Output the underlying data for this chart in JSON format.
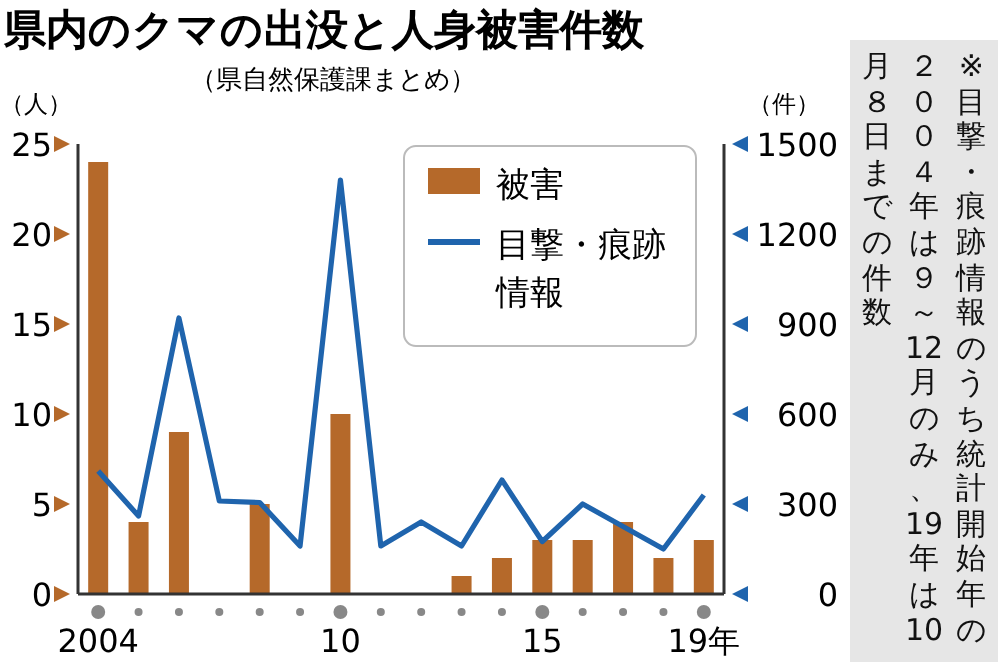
{
  "chart_data": {
    "type": "bar",
    "title": "県内のクマの出没と人身被害件数",
    "subtitle": "（県自然保護課まとめ）",
    "ylabel": "（人）",
    "y2label": "（件）",
    "categories": [
      "2004",
      null,
      null,
      null,
      null,
      null,
      "10",
      null,
      null,
      null,
      null,
      "15",
      null,
      null,
      null,
      "19年"
    ],
    "series": [
      {
        "name": "被害",
        "type": "bar",
        "color": "#b5692a",
        "values": [
          24,
          4,
          9,
          0,
          5,
          0,
          10,
          0,
          0,
          1,
          2,
          3,
          3,
          4,
          2,
          3
        ]
      },
      {
        "name": "目撃・痕跡情報",
        "type": "line",
        "axis": "y2",
        "color": "#1f64ad",
        "values": [
          410,
          260,
          920,
          310,
          305,
          160,
          1380,
          160,
          240,
          160,
          380,
          175,
          300,
          225,
          150,
          330
        ]
      }
    ],
    "ylim": [
      0,
      25
    ],
    "yticks": [
      0,
      5,
      10,
      15,
      20,
      25
    ],
    "y2lim": [
      0,
      1500
    ],
    "y2ticks": [
      0,
      300,
      600,
      900,
      1200,
      1500
    ],
    "legend": "top right",
    "grid": false,
    "marker": "none",
    "line_style": "solid",
    "annotations": [
      "※目撃・痕跡情報のうち統計開始年の２００４年は９～12月のみ、19年は10月８日までの件数"
    ]
  }
}
